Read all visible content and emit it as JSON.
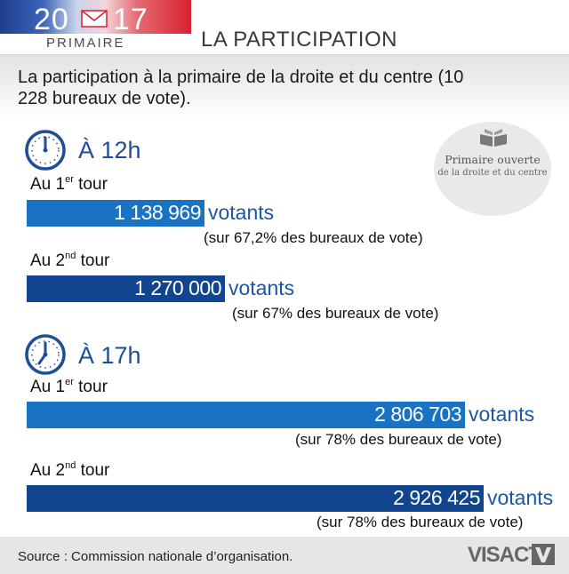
{
  "header": {
    "logo_year_left": "20",
    "logo_year_right": "17",
    "logo_label": "PRIMAIRE",
    "title": "LA PARTICIPATION"
  },
  "subtitle": "La participation à la primaire de la droite et du centre (10 228 bureaux de vote).",
  "badge": {
    "line1": "Primaire ouverte",
    "line2": "de la droite et du centre"
  },
  "colors": {
    "tour1_bar": "#1a72c4",
    "tour2_bar": "#11468f",
    "heading": "#1e4e9a",
    "unit": "#1e56a6"
  },
  "chart_data": {
    "type": "bar",
    "unit": "votants",
    "max_value": 2926425,
    "groups": [
      {
        "heading": "À 12h",
        "entries": [
          {
            "tour_prefix": "Au 1",
            "tour_sup": "er",
            "tour_suffix": " tour",
            "value": 1138969,
            "value_label": "1 138 969",
            "note": "(sur 67,2% des bureaux de vote)"
          },
          {
            "tour_prefix": "Au 2",
            "tour_sup": "nd",
            "tour_suffix": " tour",
            "value": 1270000,
            "value_label": "1 270 000",
            "note": "(sur 67% des bureaux de vote)"
          }
        ]
      },
      {
        "heading": "À 17h",
        "entries": [
          {
            "tour_prefix": "Au 1",
            "tour_sup": "er",
            "tour_suffix": " tour",
            "value": 2806703,
            "value_label": "2 806 703",
            "note": "(sur 78% des bureaux de vote)"
          },
          {
            "tour_prefix": "Au 2",
            "tour_sup": "nd",
            "tour_suffix": " tour",
            "value": 2926425,
            "value_label": "2 926 425",
            "note": "(sur 78% des bureaux de vote)"
          }
        ]
      }
    ]
  },
  "footer": {
    "source": "Source : Commission nationale d’organisation.",
    "brand": "VISACTU"
  }
}
